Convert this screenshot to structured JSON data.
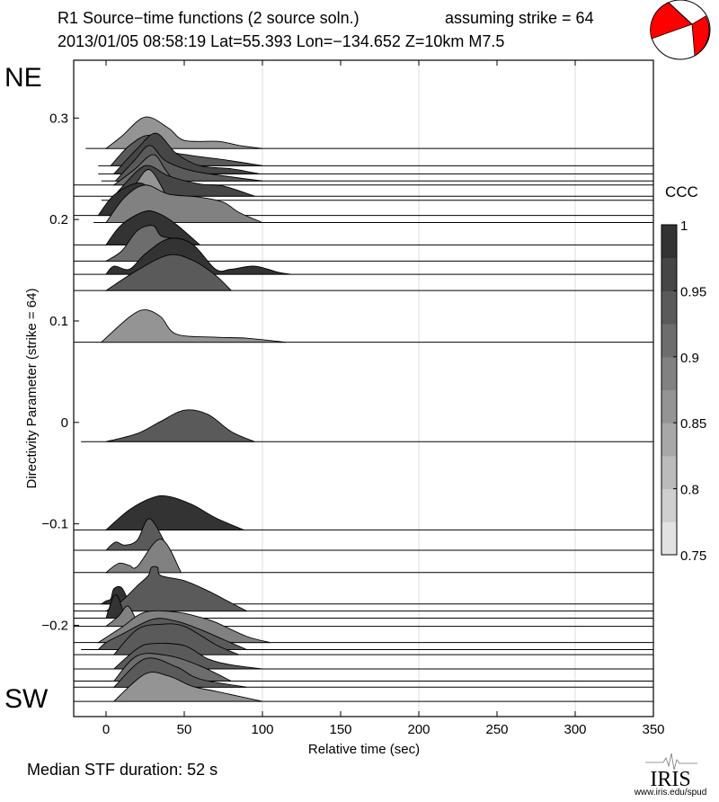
{
  "header": {
    "title": "R1 Source−time functions (2 source soln.)",
    "strike_note": "assuming strike = 64",
    "event_line": "2013/01/05 08:58:19  Lat=55.393 Lon=−134.652  Z=10km  M7.5"
  },
  "labels": {
    "ne": "NE",
    "sw": "SW",
    "median": "Median STF duration: 52 s"
  },
  "logo": {
    "text": "IRIS",
    "url_text": "www.iris.edu/spud"
  },
  "colors": {
    "beachball_red": "#ff0000",
    "grid": "#dddddd",
    "ccc_min_gray": "#e2e2e2",
    "ccc_max_gray": "#333333"
  },
  "chart_data": {
    "type": "area",
    "title": "R1 Source−time functions (2 source soln.)",
    "xlabel": "Relative time (sec)",
    "ylabel": "Directivity Parameter (strike = 64)",
    "xlim": [
      -20.7,
      350
    ],
    "ylim": [
      -0.29,
      0.357
    ],
    "xticks": [
      0,
      50,
      100,
      150,
      200,
      250,
      300,
      350
    ],
    "yticks": [
      0.3,
      0.2,
      0.1,
      0,
      -0.1,
      -0.2
    ],
    "ytick_labels": [
      "0.3",
      "0.2",
      "0.1",
      "0",
      "−0.1",
      "−0.2"
    ],
    "vertical_grid": [
      100,
      200,
      300
    ],
    "colorbar": {
      "label": "CCC",
      "range": [
        0.75,
        1
      ],
      "ticks": [
        "1",
        "0.95",
        "0.9",
        "0.85",
        "0.8",
        "0.75"
      ],
      "tick_values": [
        1,
        0.95,
        0.9,
        0.85,
        0.8,
        0.75
      ],
      "steps": 10,
      "placement": "right"
    },
    "amplitude_units": "directivity units above baseline",
    "traces": [
      {
        "d": 0.27,
        "ccc": 0.87,
        "t0": -13,
        "pts": [
          [
            0,
            0
          ],
          [
            10,
            0.012
          ],
          [
            25,
            0.031
          ],
          [
            40,
            0.02
          ],
          [
            50,
            0.008
          ],
          [
            72,
            0.007
          ],
          [
            85,
            0.003
          ],
          [
            100,
            0
          ]
        ]
      },
      {
        "d": 0.253,
        "ccc": 0.93,
        "t0": -5,
        "pts": [
          [
            3,
            0
          ],
          [
            15,
            0.02
          ],
          [
            28,
            0.03
          ],
          [
            40,
            0.015
          ],
          [
            55,
            0.01
          ],
          [
            75,
            0.006
          ],
          [
            100,
            0
          ]
        ]
      },
      {
        "d": 0.245,
        "ccc": 0.96,
        "t0": -5,
        "pts": [
          [
            5,
            0
          ],
          [
            20,
            0.025
          ],
          [
            32,
            0.04
          ],
          [
            45,
            0.02
          ],
          [
            60,
            0.008
          ],
          [
            80,
            0.005
          ],
          [
            98,
            0
          ]
        ]
      },
      {
        "d": 0.238,
        "ccc": 0.94,
        "t0": -3,
        "pts": [
          [
            6,
            0
          ],
          [
            18,
            0.02
          ],
          [
            28,
            0.035
          ],
          [
            38,
            0.02
          ],
          [
            55,
            0.01
          ],
          [
            80,
            0.004
          ],
          [
            100,
            0
          ]
        ]
      },
      {
        "d": 0.234,
        "ccc": 0.9,
        "t0": -20.7,
        "pts": [
          [
            5,
            0
          ],
          [
            18,
            0.015
          ],
          [
            30,
            0.03
          ],
          [
            38,
            0.015
          ],
          [
            45,
            0
          ]
        ]
      },
      {
        "d": 0.223,
        "ccc": 0.97,
        "t0": -20.7,
        "pts": [
          [
            5,
            0
          ],
          [
            20,
            0.025
          ],
          [
            28,
            0.03
          ],
          [
            40,
            0.02
          ],
          [
            60,
            0.012
          ],
          [
            75,
            0.01
          ],
          [
            95,
            0
          ]
        ]
      },
      {
        "d": 0.219,
        "ccc": 0.86,
        "t0": -3,
        "pts": [
          [
            5,
            0
          ],
          [
            18,
            0.015
          ],
          [
            28,
            0.03
          ],
          [
            40,
            0
          ]
        ]
      },
      {
        "d": 0.204,
        "ccc": 0.98,
        "t0": -20.7,
        "pts": [
          [
            -5,
            0
          ],
          [
            5,
            0.02
          ],
          [
            20,
            0.032
          ],
          [
            30,
            0.025
          ],
          [
            45,
            0.01
          ],
          [
            60,
            0
          ]
        ]
      },
      {
        "d": 0.197,
        "ccc": 0.88,
        "t0": -8,
        "pts": [
          [
            0,
            0
          ],
          [
            12,
            0.025
          ],
          [
            25,
            0.037
          ],
          [
            40,
            0.028
          ],
          [
            60,
            0.025
          ],
          [
            75,
            0.02
          ],
          [
            85,
            0.01
          ],
          [
            100,
            0
          ]
        ]
      },
      {
        "d": 0.175,
        "ccc": 0.99,
        "t0": -20.7,
        "pts": [
          [
            0,
            0
          ],
          [
            10,
            0.02
          ],
          [
            25,
            0.033
          ],
          [
            35,
            0.03
          ],
          [
            45,
            0.02
          ],
          [
            60,
            0
          ]
        ]
      },
      {
        "d": 0.159,
        "ccc": 0.9,
        "t0": -20.7,
        "pts": [
          [
            0,
            0
          ],
          [
            10,
            0.01
          ],
          [
            20,
            0.03
          ],
          [
            30,
            0.035
          ],
          [
            35,
            0.025
          ],
          [
            45,
            0.02
          ],
          [
            60,
            0
          ]
        ]
      },
      {
        "d": 0.146,
        "ccc": 0.99,
        "t0": -20.7,
        "pts": [
          [
            0,
            0
          ],
          [
            5,
            0.008
          ],
          [
            15,
            0.005
          ],
          [
            25,
            0.02
          ],
          [
            40,
            0.035
          ],
          [
            55,
            0.03
          ],
          [
            70,
            0.005
          ],
          [
            80,
            0.005
          ],
          [
            95,
            0.008
          ],
          [
            110,
            0.002
          ],
          [
            118,
            0
          ]
        ]
      },
      {
        "d": 0.13,
        "ccc": 0.94,
        "t0": -20.7,
        "pts": [
          [
            0,
            0
          ],
          [
            20,
            0.02
          ],
          [
            40,
            0.035
          ],
          [
            55,
            0.03
          ],
          [
            70,
            0.015
          ],
          [
            80,
            0
          ]
        ]
      },
      {
        "d": 0.079,
        "ccc": 0.86,
        "t0": -20.7,
        "pts": [
          [
            -3,
            0
          ],
          [
            15,
            0.025
          ],
          [
            25,
            0.032
          ],
          [
            35,
            0.025
          ],
          [
            45,
            0.008
          ],
          [
            70,
            0.005
          ],
          [
            90,
            0.004
          ],
          [
            115,
            0
          ]
        ]
      },
      {
        "d": -0.019,
        "ccc": 0.94,
        "t0": -16,
        "pts": [
          [
            0,
            0
          ],
          [
            20,
            0.008
          ],
          [
            35,
            0.02
          ],
          [
            50,
            0.031
          ],
          [
            65,
            0.027
          ],
          [
            80,
            0.01
          ],
          [
            95,
            0
          ]
        ]
      },
      {
        "d": -0.106,
        "ccc": 0.99,
        "t0": -20.7,
        "pts": [
          [
            0,
            0
          ],
          [
            15,
            0.02
          ],
          [
            30,
            0.032
          ],
          [
            40,
            0.033
          ],
          [
            55,
            0.025
          ],
          [
            70,
            0.012
          ],
          [
            88,
            0
          ]
        ]
      },
      {
        "d": -0.126,
        "ccc": 0.94,
        "t0": -20.7,
        "pts": [
          [
            0,
            0
          ],
          [
            6,
            0.008
          ],
          [
            12,
            0.005
          ],
          [
            20,
            0.01
          ],
          [
            28,
            0.031
          ],
          [
            40,
            0
          ]
        ]
      },
      {
        "d": -0.148,
        "ccc": 0.88,
        "t0": -20.7,
        "pts": [
          [
            0,
            0
          ],
          [
            8,
            0.009
          ],
          [
            15,
            0.007
          ],
          [
            20,
            0.006
          ],
          [
            35,
            0.033
          ],
          [
            48,
            0
          ]
        ]
      },
      {
        "d": -0.179,
        "ccc": 0.99,
        "t0": -20.7,
        "pts": [
          [
            -3,
            0
          ],
          [
            0,
            0.003
          ],
          [
            3,
            0.005
          ],
          [
            5,
            0.015
          ],
          [
            10,
            0.016
          ],
          [
            15,
            0
          ]
        ]
      },
      {
        "d": -0.186,
        "ccc": 0.94,
        "t0": -20.7,
        "pts": [
          [
            0,
            0
          ],
          [
            10,
            0.01
          ],
          [
            20,
            0.025
          ],
          [
            27,
            0.035
          ],
          [
            29,
            0.043
          ],
          [
            33,
            0.043
          ],
          [
            35,
            0.035
          ],
          [
            50,
            0.03
          ],
          [
            65,
            0.02
          ],
          [
            80,
            0.008
          ],
          [
            90,
            0
          ]
        ]
      },
      {
        "d": -0.193,
        "ccc": 0.99,
        "t0": -20.7,
        "pts": [
          [
            0,
            0
          ],
          [
            2,
            0.01
          ],
          [
            5,
            0.022
          ],
          [
            8,
            0.02
          ],
          [
            12,
            0
          ]
        ]
      },
      {
        "d": -0.201,
        "ccc": 0.88,
        "t0": -20.7,
        "pts": [
          [
            0,
            0
          ],
          [
            8,
            0.01
          ],
          [
            14,
            0.02
          ],
          [
            20,
            0.005
          ],
          [
            25,
            0
          ]
        ]
      },
      {
        "d": -0.217,
        "ccc": 0.88,
        "t0": -20.7,
        "pts": [
          [
            -5,
            0
          ],
          [
            10,
            0.015
          ],
          [
            25,
            0.03
          ],
          [
            45,
            0.03
          ],
          [
            60,
            0.025
          ],
          [
            70,
            0.02
          ],
          [
            90,
            0.006
          ],
          [
            105,
            0
          ]
        ]
      },
      {
        "d": -0.224,
        "ccc": 0.93,
        "t0": -16,
        "pts": [
          [
            -5,
            0
          ],
          [
            0,
            0.007
          ],
          [
            10,
            0.015
          ],
          [
            30,
            0.03
          ],
          [
            45,
            0.028
          ],
          [
            60,
            0.02
          ],
          [
            75,
            0.01
          ],
          [
            90,
            0
          ]
        ]
      },
      {
        "d": -0.229,
        "ccc": 0.94,
        "t0": -20.7,
        "pts": [
          [
            5,
            0
          ],
          [
            20,
            0.025
          ],
          [
            35,
            0.03
          ],
          [
            50,
            0.028
          ],
          [
            70,
            0.01
          ],
          [
            85,
            0
          ]
        ]
      },
      {
        "d": -0.243,
        "ccc": 0.95,
        "t0": -20.7,
        "pts": [
          [
            5,
            0
          ],
          [
            20,
            0.02
          ],
          [
            30,
            0.025
          ],
          [
            50,
            0.023
          ],
          [
            65,
            0.01
          ],
          [
            80,
            0.004
          ],
          [
            100,
            0
          ]
        ]
      },
      {
        "d": -0.255,
        "ccc": 0.91,
        "t0": -20.7,
        "pts": [
          [
            5,
            0
          ],
          [
            20,
            0.025
          ],
          [
            40,
            0.025
          ],
          [
            60,
            0.015
          ],
          [
            80,
            0
          ]
        ]
      },
      {
        "d": -0.261,
        "ccc": 0.93,
        "t0": -20.7,
        "pts": [
          [
            5,
            0
          ],
          [
            25,
            0.028
          ],
          [
            45,
            0.02
          ],
          [
            60,
            0.008
          ],
          [
            90,
            0
          ]
        ]
      },
      {
        "d": -0.275,
        "ccc": 0.86,
        "t0": -20.7,
        "pts": [
          [
            5,
            0
          ],
          [
            25,
            0.027
          ],
          [
            40,
            0.025
          ],
          [
            55,
            0.015
          ],
          [
            70,
            0.01
          ],
          [
            85,
            0.005
          ],
          [
            100,
            0
          ]
        ]
      }
    ]
  }
}
